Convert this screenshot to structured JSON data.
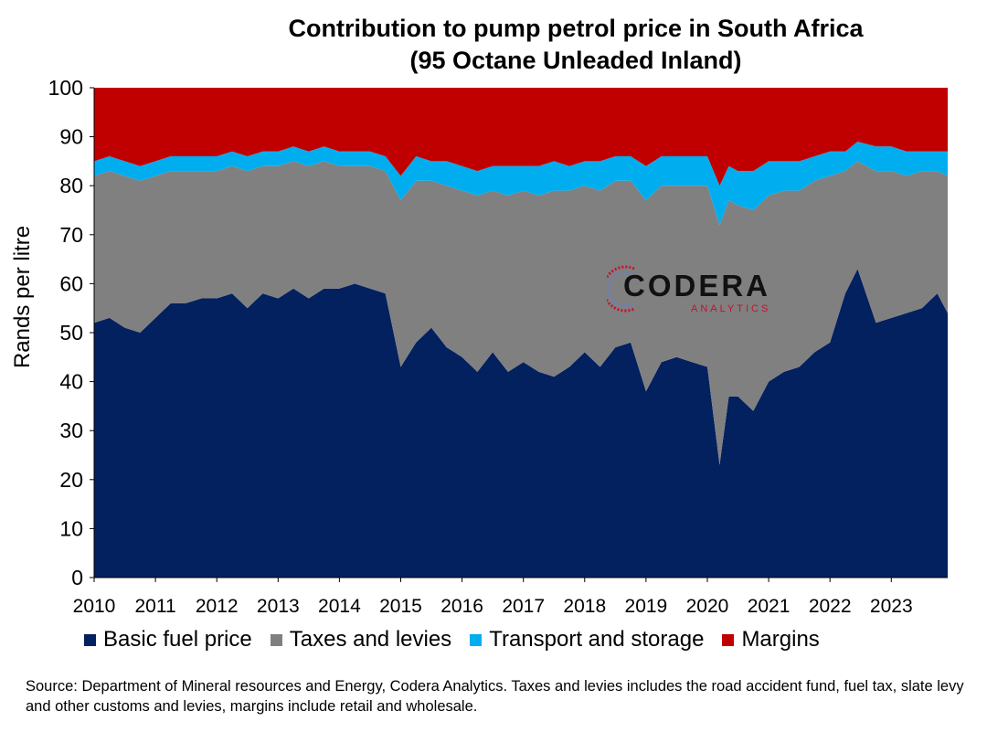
{
  "title_line1": "Contribution to pump petrol price in South Africa",
  "title_line2": "(95 Octane Unleaded Inland)",
  "source": "Source: Department of Mineral resources and Energy, Codera Analytics. Taxes and levies includes the road accident fund, fuel tax, slate levy and other customs and levies, margins include retail and wholesale.",
  "logo": {
    "name": "CODERA",
    "sub": "ANALYTICS"
  },
  "colors": {
    "basic": "#03205f",
    "taxes": "#808080",
    "transport": "#00aeef",
    "margins": "#c00000"
  },
  "chart_data": {
    "type": "area",
    "stacked": true,
    "normalized": "percent",
    "ylabel": "Rands per litre",
    "ylim": [
      0,
      100
    ],
    "yticks": [
      0,
      10,
      20,
      30,
      40,
      50,
      60,
      70,
      80,
      90,
      100
    ],
    "xticks": [
      "2010",
      "2011",
      "2012",
      "2013",
      "2014",
      "2015",
      "2016",
      "2017",
      "2018",
      "2019",
      "2020",
      "2021",
      "2022",
      "2023"
    ],
    "xrange": [
      2010.0,
      2023.92
    ],
    "legend_position": "bottom",
    "grid": false,
    "x": [
      2010.0,
      2010.25,
      2010.5,
      2010.75,
      2011.0,
      2011.25,
      2011.5,
      2011.75,
      2012.0,
      2012.25,
      2012.5,
      2012.75,
      2013.0,
      2013.25,
      2013.5,
      2013.75,
      2014.0,
      2014.25,
      2014.5,
      2014.75,
      2015.0,
      2015.25,
      2015.5,
      2015.75,
      2016.0,
      2016.25,
      2016.5,
      2016.75,
      2017.0,
      2017.25,
      2017.5,
      2017.75,
      2018.0,
      2018.25,
      2018.5,
      2018.75,
      2019.0,
      2019.25,
      2019.5,
      2019.75,
      2020.0,
      2020.2,
      2020.35,
      2020.5,
      2020.75,
      2021.0,
      2021.25,
      2021.5,
      2021.75,
      2022.0,
      2022.25,
      2022.45,
      2022.75,
      2023.0,
      2023.25,
      2023.5,
      2023.75,
      2023.92
    ],
    "series": [
      {
        "name": "Basic fuel price",
        "values": [
          52,
          53,
          51,
          50,
          53,
          56,
          56,
          57,
          57,
          58,
          55,
          58,
          57,
          59,
          57,
          59,
          59,
          60,
          59,
          58,
          43,
          48,
          51,
          47,
          45,
          42,
          46,
          42,
          44,
          42,
          41,
          43,
          46,
          43,
          47,
          48,
          38,
          44,
          45,
          44,
          43,
          23,
          37,
          37,
          34,
          40,
          42,
          43,
          46,
          48,
          58,
          63,
          52,
          53,
          54,
          55,
          58,
          54
        ]
      },
      {
        "name": "Taxes and levies",
        "values": [
          30,
          30,
          31,
          31,
          29,
          27,
          27,
          26,
          26,
          26,
          28,
          26,
          27,
          26,
          27,
          26,
          25,
          24,
          25,
          25,
          34,
          33,
          30,
          33,
          34,
          36,
          33,
          36,
          35,
          36,
          38,
          36,
          34,
          36,
          34,
          33,
          39,
          36,
          35,
          36,
          37,
          49,
          40,
          39,
          41,
          38,
          37,
          36,
          35,
          34,
          25,
          22,
          31,
          30,
          28,
          28,
          25,
          28
        ]
      },
      {
        "name": "Transport and storage",
        "values": [
          3,
          3,
          3,
          3,
          3,
          3,
          3,
          3,
          3,
          3,
          3,
          3,
          3,
          3,
          3,
          3,
          3,
          3,
          3,
          3,
          5,
          5,
          4,
          5,
          5,
          5,
          5,
          6,
          5,
          6,
          6,
          5,
          5,
          6,
          5,
          5,
          7,
          6,
          6,
          6,
          6,
          8,
          7,
          7,
          8,
          7,
          6,
          6,
          5,
          5,
          4,
          4,
          5,
          5,
          5,
          4,
          4,
          5
        ]
      },
      {
        "name": "Margins",
        "values": [
          15,
          14,
          15,
          16,
          15,
          14,
          14,
          14,
          14,
          13,
          14,
          13,
          13,
          12,
          13,
          12,
          13,
          13,
          13,
          14,
          18,
          14,
          15,
          15,
          16,
          17,
          16,
          16,
          16,
          16,
          15,
          16,
          15,
          15,
          14,
          14,
          16,
          14,
          14,
          14,
          14,
          20,
          16,
          17,
          17,
          15,
          15,
          15,
          14,
          13,
          13,
          11,
          12,
          12,
          13,
          13,
          13,
          13
        ]
      }
    ]
  }
}
